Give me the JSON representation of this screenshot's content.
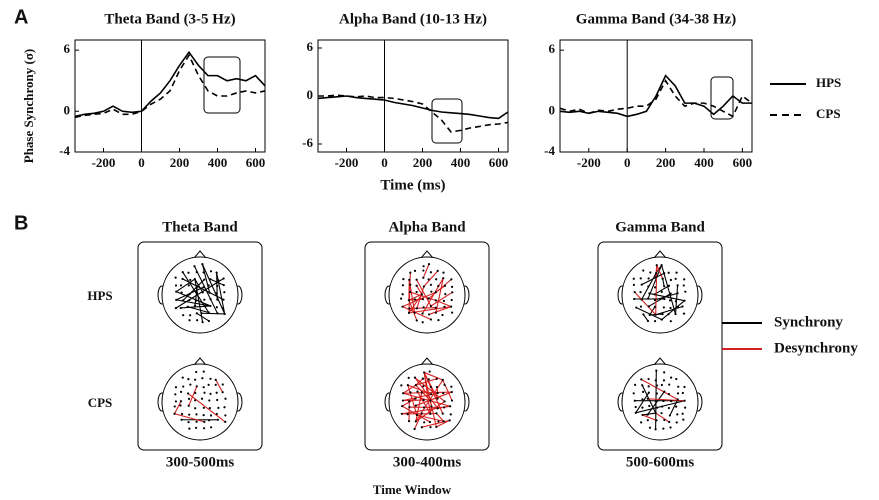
{
  "panel_labels": [
    "A",
    "B"
  ],
  "chart_data": [
    {
      "type": "line",
      "title": "Theta Band (3-5 Hz)",
      "ylabel": "Phase Synchrony (σ)",
      "x": [
        -350,
        -300,
        -250,
        -200,
        -150,
        -100,
        -50,
        0,
        50,
        100,
        150,
        200,
        250,
        300,
        350,
        400,
        450,
        500,
        550,
        600,
        650
      ],
      "xlim": [
        -350,
        650
      ],
      "xticks": [
        -200,
        0,
        200,
        400,
        600
      ],
      "ylim": [
        -4,
        7
      ],
      "yticks": [
        -4,
        0,
        6
      ],
      "series": [
        {
          "name": "HPS",
          "color": "#000000",
          "style": "solid",
          "values": [
            -0.5,
            -0.3,
            -0.2,
            0,
            0.5,
            0,
            -0.1,
            0,
            1,
            1.8,
            3,
            4.5,
            5.8,
            4.5,
            3.5,
            3.5,
            3,
            3.2,
            3,
            3.5,
            2.5
          ]
        },
        {
          "name": "CPS",
          "color": "#000000",
          "style": "dashed",
          "values": [
            -0.6,
            -0.4,
            -0.3,
            -0.2,
            0.2,
            -0.3,
            -0.3,
            0,
            0.7,
            1.2,
            2,
            4,
            5.5,
            3.5,
            2,
            1.5,
            1.5,
            1.8,
            2,
            1.8,
            2
          ]
        }
      ]
    },
    {
      "type": "line",
      "title": "Alpha Band (10-13 Hz)",
      "xlabel": "Time (ms)",
      "x": [
        -350,
        -300,
        -250,
        -200,
        -150,
        -100,
        -50,
        0,
        50,
        100,
        150,
        200,
        250,
        300,
        350,
        400,
        450,
        500,
        550,
        600,
        650
      ],
      "xlim": [
        -350,
        650
      ],
      "xticks": [
        -200,
        0,
        200,
        400,
        600
      ],
      "ylim": [
        -7,
        7
      ],
      "yticks": [
        -6,
        0,
        6
      ],
      "series": [
        {
          "name": "HPS",
          "color": "#000000",
          "style": "solid",
          "values": [
            -0.3,
            -0.2,
            -0.1,
            0,
            -0.2,
            -0.3,
            -0.4,
            -0.5,
            -0.8,
            -1,
            -1.2,
            -1.5,
            -1.8,
            -2,
            -2.1,
            -2.2,
            -2.3,
            -2.5,
            -2.7,
            -2.8,
            -2
          ]
        },
        {
          "name": "CPS",
          "color": "#000000",
          "style": "dashed",
          "values": [
            0,
            0,
            0.1,
            0,
            -0.1,
            0,
            -0.2,
            -0.2,
            -0.3,
            -0.5,
            -0.7,
            -1,
            -2,
            -3,
            -4.5,
            -4.3,
            -4,
            -3.8,
            -3.6,
            -3.5,
            -3.3
          ]
        }
      ]
    },
    {
      "type": "line",
      "title": "Gamma Band (34-38 Hz)",
      "legend": "right",
      "x": [
        -350,
        -300,
        -250,
        -200,
        -150,
        -100,
        -50,
        0,
        50,
        100,
        150,
        200,
        250,
        300,
        350,
        400,
        450,
        500,
        550,
        600,
        650
      ],
      "xlim": [
        -350,
        650
      ],
      "xticks": [
        -200,
        0,
        200,
        400,
        600
      ],
      "ylim": [
        -4,
        7
      ],
      "yticks": [
        -4,
        0,
        6
      ],
      "series": [
        {
          "name": "HPS",
          "color": "#000000",
          "style": "solid",
          "values": [
            0,
            -0.1,
            0,
            -0.2,
            0,
            -0.1,
            -0.2,
            -0.5,
            -0.3,
            0,
            1.5,
            3.5,
            2.5,
            0.8,
            0.8,
            0.5,
            -0.3,
            0.5,
            1.5,
            0.8,
            0.8
          ]
        },
        {
          "name": "CPS",
          "color": "#000000",
          "style": "dashed",
          "values": [
            0.3,
            0,
            0.2,
            -0.2,
            0.1,
            0,
            0.2,
            0.3,
            0.5,
            0.5,
            1.2,
            3,
            1.5,
            0.5,
            0.8,
            0.8,
            0.5,
            0,
            -0.5,
            1.5,
            0.8
          ]
        }
      ]
    }
  ],
  "panel_b": {
    "bands": [
      {
        "title": "Theta Band",
        "window": "300-500ms"
      },
      {
        "title": "Alpha Band",
        "window": "300-400ms"
      },
      {
        "title": "Gamma Band",
        "window": "500-600ms"
      }
    ],
    "rows": [
      "HPS",
      "CPS"
    ],
    "xlabel": "Time Window",
    "legend": [
      {
        "name": "Synchrony",
        "color": "#000000"
      },
      {
        "name": "Desynchrony",
        "color": "#d42020"
      }
    ]
  }
}
